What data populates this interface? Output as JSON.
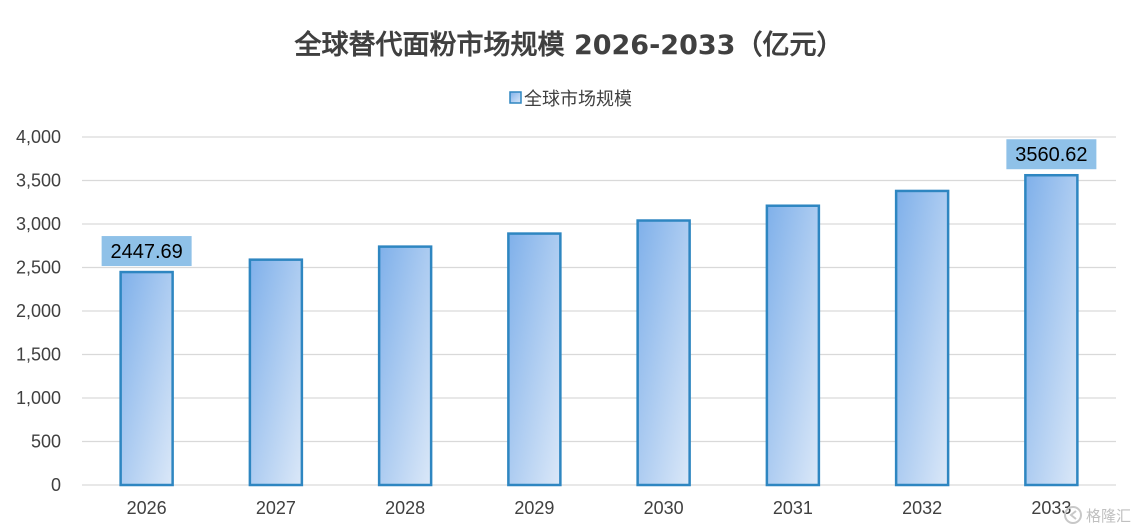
{
  "chart_data": {
    "type": "bar",
    "title": "全球替代面粉市场规模 2026-2033（亿元）",
    "legend": {
      "entries": [
        "全球市场规模"
      ],
      "placement": "top-center"
    },
    "categories": [
      "2026",
      "2027",
      "2028",
      "2029",
      "2030",
      "2031",
      "2032",
      "2033"
    ],
    "series": [
      {
        "name": "全球市场规模",
        "values": [
          2447.69,
          2590,
          2740,
          2890,
          3040,
          3210,
          3380,
          3560.62
        ]
      }
    ],
    "data_labels": [
      {
        "index": 0,
        "text": "2447.69"
      },
      {
        "index": 7,
        "text": "3560.62"
      }
    ],
    "ylim": [
      0,
      4000
    ],
    "yticks": [
      0,
      500,
      1000,
      1500,
      2000,
      2500,
      3000,
      3500,
      4000
    ],
    "ytick_labels": [
      "0",
      "500",
      "1,000",
      "1,500",
      "2,000",
      "2,500",
      "3,000",
      "3,500",
      "4,000"
    ],
    "grid": true,
    "colors": {
      "bar_fill_start": "#7fb0ea",
      "bar_fill_end": "#dbe8f8",
      "bar_stroke": "#2e86c1",
      "label_bg": "#8fc1e8",
      "grid": "#d9d9d9"
    }
  },
  "watermark": {
    "text": "格隆汇"
  }
}
